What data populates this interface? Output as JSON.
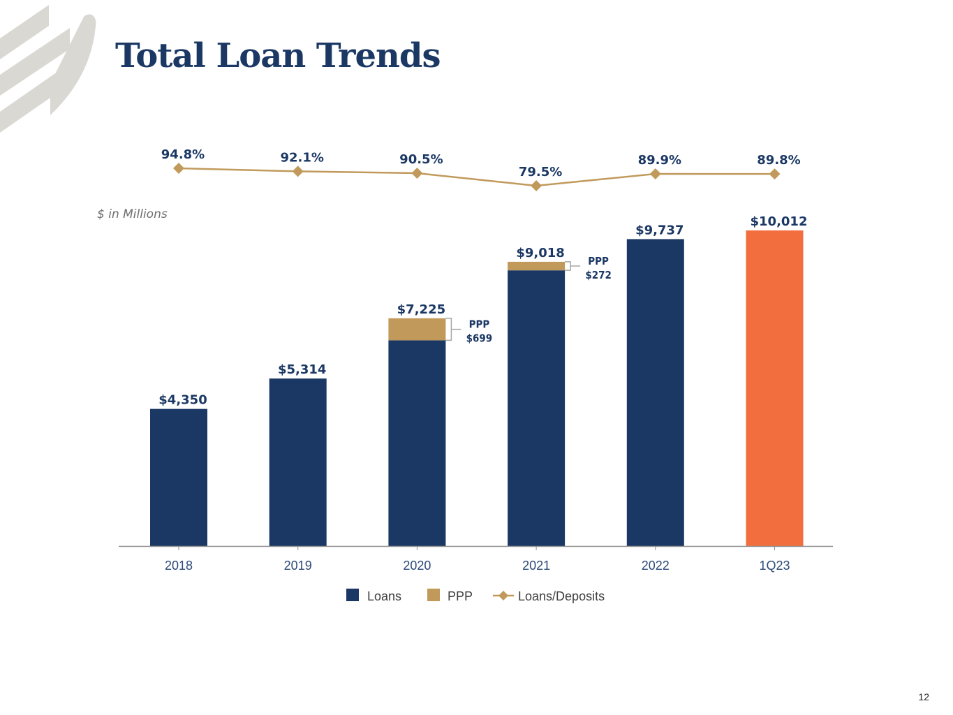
{
  "slide": {
    "title": "Total Loan Trends",
    "units_note": "$ in Millions",
    "page_number": "12"
  },
  "colors": {
    "loans": "#1b3864",
    "ppp": "#c19a5b",
    "latest": "#f26e3f",
    "ratio_line": "#c19a5b",
    "axis": "#8c8c8c",
    "logo": "#d9d8d3"
  },
  "chart_data": {
    "type": "bar",
    "stacked": true,
    "categories": [
      "2018",
      "2019",
      "2020",
      "2021",
      "2022",
      "1Q23"
    ],
    "series": [
      {
        "name": "Loans",
        "values": [
          4350,
          5314,
          6526,
          8746,
          9737,
          10012
        ]
      },
      {
        "name": "PPP",
        "values": [
          0,
          0,
          699,
          272,
          0,
          0
        ]
      }
    ],
    "totals": [
      4350,
      5314,
      7225,
      9018,
      9737,
      10012
    ],
    "total_labels": [
      "$4,350",
      "$5,314",
      "$7,225",
      "$9,018",
      "$9,737",
      "$10,012"
    ],
    "highlight_category": "1Q23",
    "ppp_callouts": [
      {
        "category": "2020",
        "line1": "PPP",
        "line2": "$699"
      },
      {
        "category": "2021",
        "line1": "PPP",
        "line2": "$272"
      }
    ],
    "line_series": {
      "name": "Loans/Deposits",
      "values": [
        94.8,
        92.1,
        90.5,
        79.5,
        89.9,
        89.8
      ],
      "labels": [
        "94.8%",
        "92.1%",
        "90.5%",
        "79.5%",
        "89.9%",
        "89.8%"
      ]
    },
    "ylim": [
      0,
      10500
    ],
    "legend": [
      "Loans",
      "PPP",
      "Loans/Deposits"
    ],
    "legend_position": "bottom-center"
  }
}
